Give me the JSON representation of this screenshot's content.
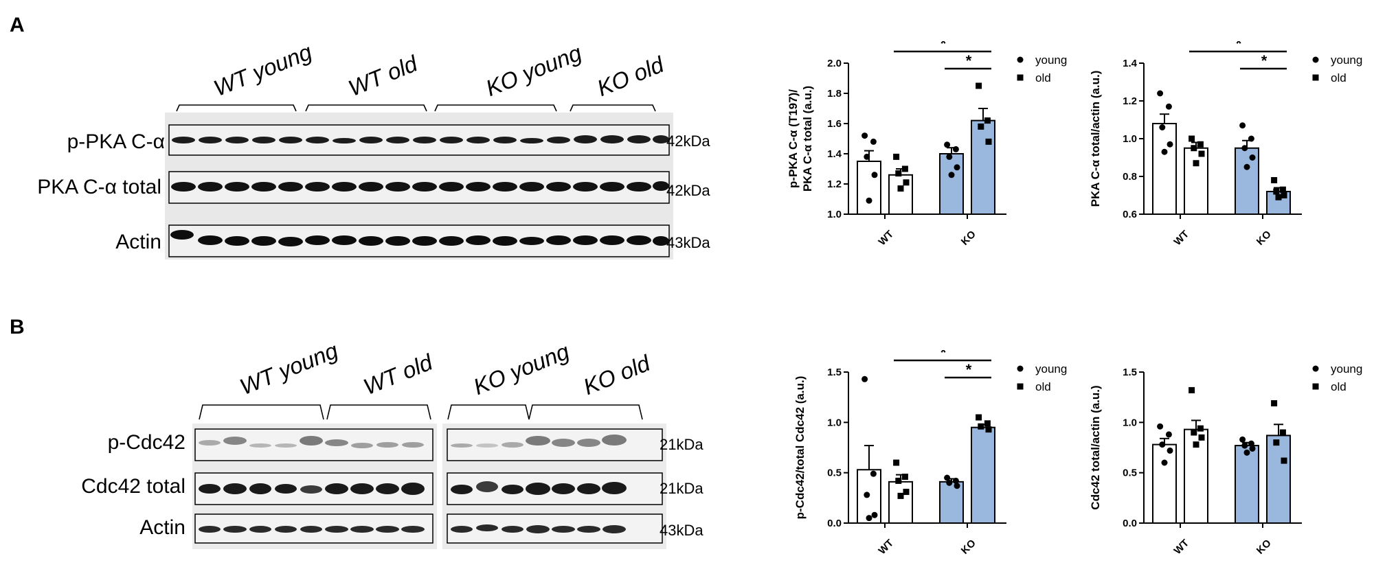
{
  "panel_a": {
    "letter": "A",
    "blot": {
      "groups": [
        "WT young",
        "WT old",
        "KO young",
        "KO old"
      ],
      "rows": [
        {
          "label": "p-PKA C-α",
          "kda": "42kDa"
        },
        {
          "label": "PKA C-α total",
          "kda": "42kDa"
        },
        {
          "label": "Actin",
          "kda": "43kDa"
        }
      ]
    }
  },
  "panel_b": {
    "letter": "B",
    "blot": {
      "groups": [
        "WT young",
        "WT old",
        "KO young",
        "KO old"
      ],
      "rows": [
        {
          "label": "p-Cdc42",
          "kda": "21kDa"
        },
        {
          "label": "Cdc42 total",
          "kda": "21kDa"
        },
        {
          "label": "Actin",
          "kda": "43kDa"
        }
      ]
    }
  },
  "colors": {
    "ko_bar": "#9ab7dd",
    "wt_bar": "#ffffff",
    "axis": "#000000"
  },
  "chart_data": [
    {
      "type": "bar",
      "panel": "A",
      "ylabel": "p-PKA C-α (T197)/ PKA C-α total (a.u.)",
      "ylabel_lines": [
        "p-PKA C-α (T197)/",
        "PKA C-α total (a.u.)"
      ],
      "categories": [
        "WT",
        "KO"
      ],
      "ylim": [
        1.0,
        2.0
      ],
      "yticks": [
        "1.0",
        "1.2",
        "1.4",
        "1.6",
        "1.8",
        "2.0"
      ],
      "legend": [
        "young",
        "old"
      ],
      "series": [
        {
          "name": "young",
          "marker": "circle",
          "means": [
            1.35,
            1.4
          ],
          "sem": [
            0.07,
            0.04
          ],
          "points": [
            [
              1.52,
              1.48,
              1.38,
              1.26,
              1.09
            ],
            [
              1.46,
              1.43,
              1.38,
              1.31,
              1.26
            ]
          ]
        },
        {
          "name": "old",
          "marker": "square",
          "means": [
            1.26,
            1.62
          ],
          "sem": [
            0.04,
            0.08
          ],
          "points": [
            [
              1.38,
              1.3,
              1.27,
              1.21,
              1.17
            ],
            [
              1.85,
              1.62,
              1.58,
              1.48
            ]
          ]
        }
      ],
      "significance": [
        {
          "from": "WT old",
          "to": "KO old",
          "label": "*"
        },
        {
          "from": "KO young",
          "to": "KO old",
          "label": "*"
        }
      ]
    },
    {
      "type": "bar",
      "panel": "A",
      "ylabel": "PKA C-α total/actin (a.u.)",
      "ylabel_lines": [
        "PKA C-α total/actin (a.u.)"
      ],
      "categories": [
        "WT",
        "KO"
      ],
      "ylim": [
        0.6,
        1.4
      ],
      "yticks": [
        "0.6",
        "0.8",
        "1.0",
        "1.2",
        "1.4"
      ],
      "legend": [
        "young",
        "old"
      ],
      "series": [
        {
          "name": "young",
          "marker": "circle",
          "means": [
            1.08,
            0.95
          ],
          "sem": [
            0.05,
            0.04
          ],
          "points": [
            [
              1.24,
              1.17,
              1.06,
              0.97,
              0.93
            ],
            [
              1.07,
              1.0,
              0.95,
              0.9,
              0.85
            ]
          ]
        },
        {
          "name": "old",
          "marker": "square",
          "means": [
            0.95,
            0.72
          ],
          "sem": [
            0.03,
            0.02
          ],
          "points": [
            [
              1.0,
              0.97,
              0.95,
              0.92,
              0.87
            ],
            [
              0.78,
              0.73,
              0.72,
              0.7,
              0.69
            ]
          ]
        }
      ],
      "significance": [
        {
          "from": "WT old",
          "to": "KO old",
          "label": "*"
        },
        {
          "from": "KO young",
          "to": "KO old",
          "label": "*"
        }
      ]
    },
    {
      "type": "bar",
      "panel": "B",
      "ylabel": "p-Cdc42/total Cdc42 (a.u.)",
      "ylabel_lines": [
        "p-Cdc42/total Cdc42 (a.u.)"
      ],
      "categories": [
        "WT",
        "KO"
      ],
      "ylim": [
        0.0,
        1.5
      ],
      "yticks": [
        "0.0",
        "0.5",
        "1.0",
        "1.5"
      ],
      "legend": [
        "young",
        "old"
      ],
      "series": [
        {
          "name": "young",
          "marker": "circle",
          "means": [
            0.53,
            0.41
          ],
          "sem": [
            0.24,
            0.03
          ],
          "points": [
            [
              1.43,
              0.49,
              0.28,
              0.08,
              0.05
            ],
            [
              0.45,
              0.42,
              0.4,
              0.37
            ]
          ]
        },
        {
          "name": "old",
          "marker": "square",
          "means": [
            0.41,
            0.95
          ],
          "sem": [
            0.07,
            0.03
          ],
          "points": [
            [
              0.6,
              0.46,
              0.42,
              0.31,
              0.27
            ],
            [
              1.05,
              0.99,
              0.96,
              0.93
            ]
          ]
        }
      ],
      "significance": [
        {
          "from": "WT old",
          "to": "KO old",
          "label": "*"
        },
        {
          "from": "KO young",
          "to": "KO old",
          "label": "*"
        }
      ]
    },
    {
      "type": "bar",
      "panel": "B",
      "ylabel": "Cdc42 total/actin (a.u.)",
      "ylabel_lines": [
        "Cdc42 total/actin (a.u.)"
      ],
      "categories": [
        "WT",
        "KO"
      ],
      "ylim": [
        0.0,
        1.5
      ],
      "yticks": [
        "0.0",
        "0.5",
        "1.0",
        "1.5"
      ],
      "legend": [
        "young",
        "old"
      ],
      "series": [
        {
          "name": "young",
          "marker": "circle",
          "means": [
            0.78,
            0.77
          ],
          "sem": [
            0.06,
            0.03
          ],
          "points": [
            [
              0.96,
              0.88,
              0.78,
              0.72,
              0.6
            ],
            [
              0.83,
              0.79,
              0.77,
              0.74,
              0.7
            ]
          ]
        },
        {
          "name": "old",
          "marker": "square",
          "means": [
            0.93,
            0.87
          ],
          "sem": [
            0.09,
            0.11
          ],
          "points": [
            [
              1.32,
              0.94,
              0.9,
              0.85,
              0.78
            ],
            [
              1.19,
              0.9,
              0.8,
              0.62
            ]
          ]
        }
      ],
      "significance": []
    }
  ]
}
